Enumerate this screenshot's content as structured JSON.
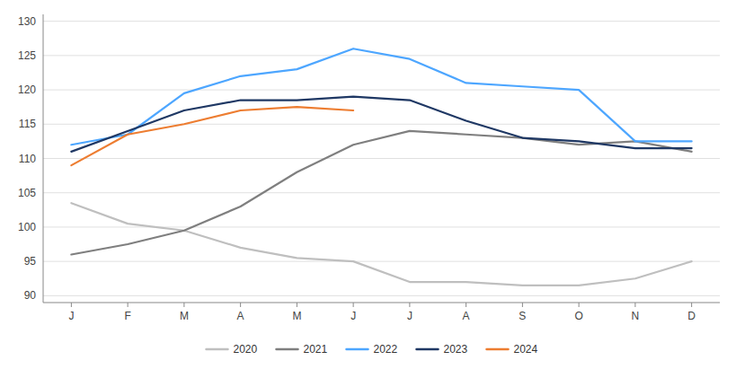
{
  "chart_data": {
    "type": "line",
    "categories": [
      "J",
      "F",
      "M",
      "A",
      "M",
      "J",
      "J",
      "A",
      "S",
      "O",
      "N",
      "D"
    ],
    "series": [
      {
        "name": "2020",
        "color": "#bfbfbf",
        "values": [
          103.5,
          100.5,
          99.5,
          97.0,
          95.5,
          95.0,
          92.0,
          92.0,
          91.5,
          91.5,
          92.5,
          95.0
        ]
      },
      {
        "name": "2021",
        "color": "#7f7f7f",
        "values": [
          96.0,
          97.5,
          99.5,
          103.0,
          108.0,
          112.0,
          114.0,
          113.5,
          113.0,
          112.0,
          112.5,
          111.0
        ]
      },
      {
        "name": "2022",
        "color": "#4da6ff",
        "values": [
          112.0,
          113.5,
          119.5,
          122.0,
          123.0,
          126.0,
          124.5,
          121.0,
          120.5,
          120.0,
          112.5,
          112.5
        ]
      },
      {
        "name": "2023",
        "color": "#1f3864",
        "values": [
          111.0,
          114.0,
          117.0,
          118.5,
          118.5,
          119.0,
          118.5,
          115.5,
          113.0,
          112.5,
          111.5,
          111.5
        ]
      },
      {
        "name": "2024",
        "color": "#ed7d31",
        "values": [
          109.0,
          113.5,
          115.0,
          117.0,
          117.5,
          117.0,
          null,
          null,
          null,
          null,
          null,
          null
        ]
      }
    ],
    "ylim": [
      89,
      131
    ],
    "yticks": [
      90,
      95,
      100,
      105,
      110,
      115,
      120,
      125,
      130
    ],
    "grid": true,
    "legend": "bottom"
  }
}
